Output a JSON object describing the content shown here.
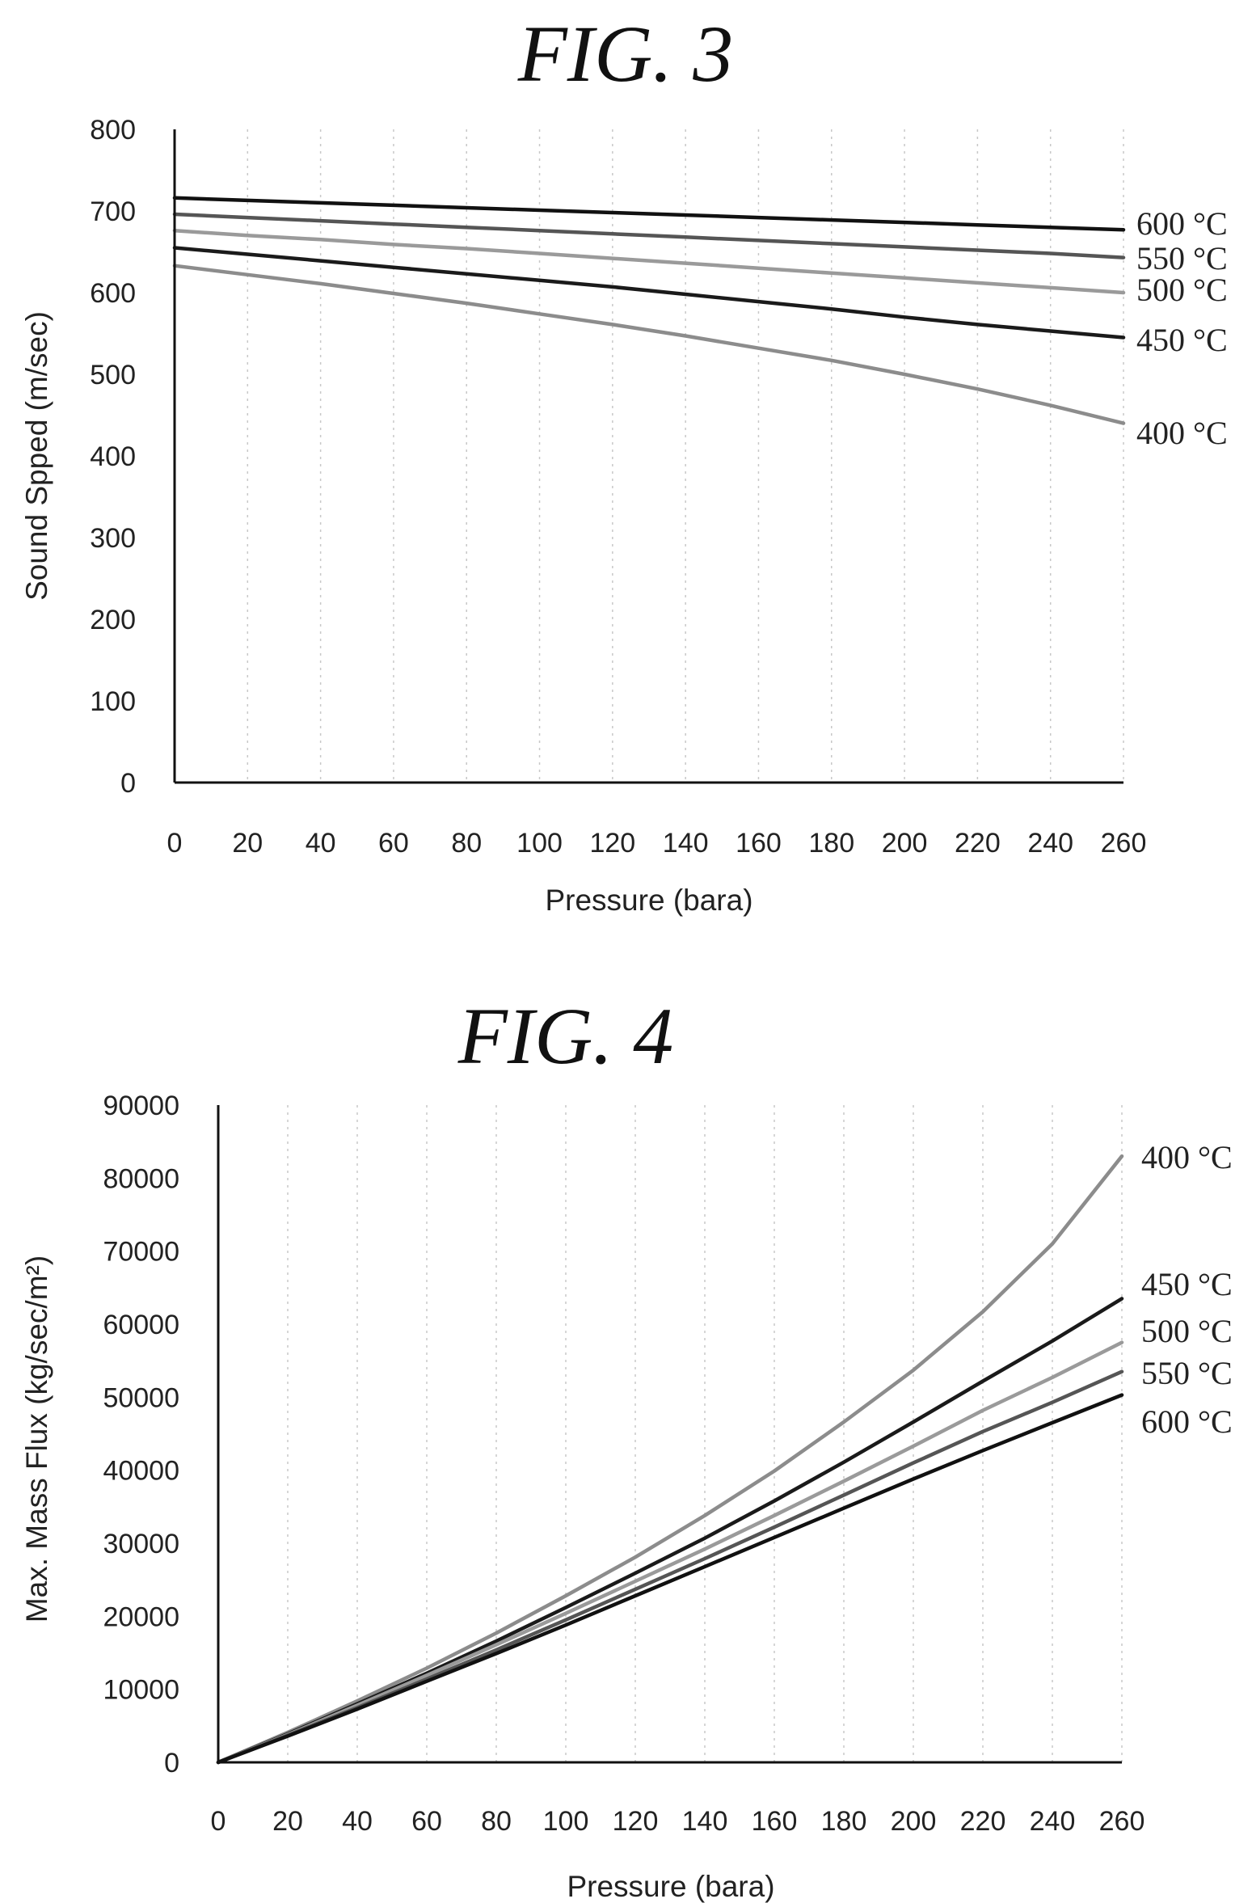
{
  "chart_data": [
    {
      "type": "line",
      "title": "FIG. 3",
      "xlabel": "Pressure (bara)",
      "ylabel": "Sound Spped (m/sec)",
      "xlim": [
        0,
        260
      ],
      "ylim": [
        0,
        800
      ],
      "xticks": [
        0,
        20,
        40,
        60,
        80,
        100,
        120,
        140,
        160,
        180,
        200,
        220,
        240,
        260
      ],
      "yticks": [
        0,
        100,
        200,
        300,
        400,
        500,
        600,
        700,
        800
      ],
      "tick_labels_x": [
        "0",
        "20",
        "40",
        "60",
        "80",
        "100",
        "120",
        "140",
        "160",
        "180",
        "200",
        "220",
        "240",
        "260"
      ],
      "tick_labels_y": [
        "0",
        "100",
        "200",
        "300",
        "400",
        "500",
        "600",
        "700",
        "800"
      ],
      "grid": "vertical dashed",
      "x": [
        0,
        20,
        40,
        60,
        80,
        100,
        120,
        140,
        160,
        180,
        200,
        220,
        240,
        260
      ],
      "series": [
        {
          "name": "600 °C",
          "color": "#111111",
          "values": [
            716,
            713,
            710,
            707,
            704,
            701,
            698,
            695,
            692,
            689,
            686,
            683,
            680,
            677
          ]
        },
        {
          "name": "550 °C",
          "color": "#555555",
          "values": [
            696,
            692,
            688,
            684,
            680,
            676,
            672,
            668,
            664,
            660,
            656,
            652,
            648,
            643
          ]
        },
        {
          "name": "500 °C",
          "color": "#9a9a9a",
          "values": [
            676,
            670,
            665,
            659,
            654,
            648,
            642,
            636,
            630,
            624,
            618,
            612,
            606,
            600
          ]
        },
        {
          "name": "450 °C",
          "color": "#1a1a1a",
          "values": [
            655,
            647,
            639,
            631,
            623,
            615,
            607,
            598,
            589,
            580,
            570,
            561,
            553,
            545
          ]
        },
        {
          "name": "400 °C",
          "color": "#8c8c8c",
          "values": [
            633,
            622,
            611,
            599,
            587,
            574,
            561,
            547,
            532,
            517,
            500,
            482,
            462,
            440
          ]
        }
      ]
    },
    {
      "type": "line",
      "title": "FIG. 4",
      "xlabel": "Pressure (bara)",
      "ylabel": "Max. Mass Flux (kg/sec/m²)",
      "xlim": [
        0,
        260
      ],
      "ylim": [
        0,
        90000
      ],
      "xticks": [
        0,
        20,
        40,
        60,
        80,
        100,
        120,
        140,
        160,
        180,
        200,
        220,
        240,
        260
      ],
      "yticks": [
        0,
        10000,
        20000,
        30000,
        40000,
        50000,
        60000,
        70000,
        80000,
        90000
      ],
      "tick_labels_x": [
        "0",
        "20",
        "40",
        "60",
        "80",
        "100",
        "120",
        "140",
        "160",
        "180",
        "200",
        "220",
        "240",
        "260"
      ],
      "tick_labels_y": [
        "0",
        "10000",
        "20000",
        "30000",
        "40000",
        "50000",
        "60000",
        "70000",
        "80000",
        "90000"
      ],
      "grid": "vertical dashed",
      "x": [
        0,
        20,
        40,
        60,
        80,
        100,
        120,
        140,
        160,
        180,
        200,
        220,
        240,
        260
      ],
      "series": [
        {
          "name": "400 °C",
          "color": "#8c8c8c",
          "values": [
            0,
            4100,
            8400,
            12900,
            17700,
            22800,
            28100,
            33800,
            39900,
            46600,
            53700,
            61700,
            71000,
            83000
          ]
        },
        {
          "name": "450 °C",
          "color": "#1a1a1a",
          "values": [
            0,
            3900,
            8000,
            12200,
            16600,
            21200,
            25900,
            30700,
            35800,
            41100,
            46600,
            52200,
            57700,
            63500
          ]
        },
        {
          "name": "500 °C",
          "color": "#9a9a9a",
          "values": [
            0,
            3800,
            7800,
            11900,
            16100,
            20400,
            24800,
            29200,
            33800,
            38500,
            43300,
            48200,
            52700,
            57500
          ]
        },
        {
          "name": "550 °C",
          "color": "#555555",
          "values": [
            0,
            3700,
            7500,
            11400,
            15400,
            19500,
            23700,
            27900,
            32200,
            36600,
            41000,
            45300,
            49300,
            53500
          ]
        },
        {
          "name": "600 °C",
          "color": "#111111",
          "values": [
            0,
            3600,
            7300,
            11100,
            14900,
            18800,
            22800,
            26800,
            30800,
            34800,
            38800,
            42700,
            46500,
            50300
          ]
        }
      ]
    }
  ]
}
